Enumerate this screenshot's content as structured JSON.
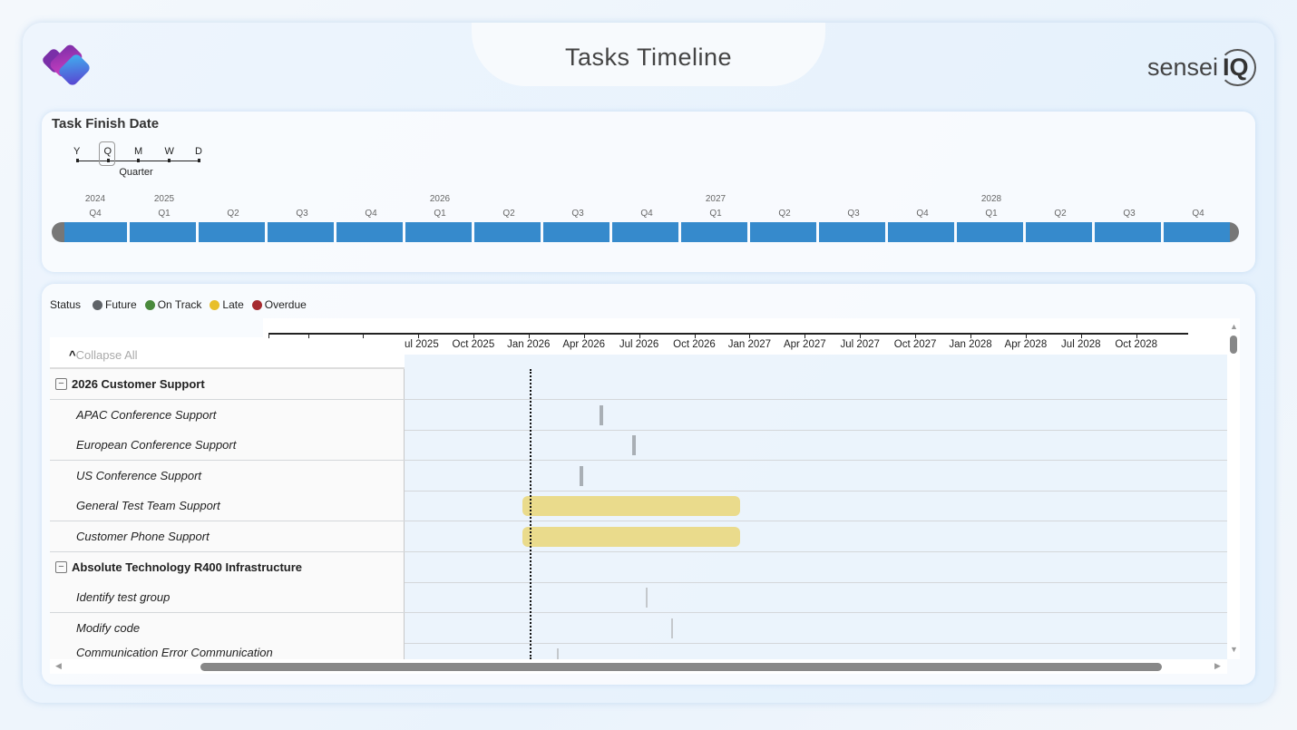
{
  "header": {
    "title": "Tasks Timeline",
    "brand": "senseiIQ",
    "brand_parts": [
      "sensei",
      "IQ"
    ]
  },
  "slicer": {
    "title": "Task Finish Date",
    "granularity": [
      "Y",
      "Q",
      "M",
      "W",
      "D"
    ],
    "selected_granularity": "Q",
    "selected_label": "Quarter",
    "periods": [
      {
        "year": "2024",
        "q": "Q4"
      },
      {
        "year": "2025",
        "q": "Q1"
      },
      {
        "year": "",
        "q": "Q2"
      },
      {
        "year": "",
        "q": "Q3"
      },
      {
        "year": "",
        "q": "Q4"
      },
      {
        "year": "2026",
        "q": "Q1"
      },
      {
        "year": "",
        "q": "Q2"
      },
      {
        "year": "",
        "q": "Q3"
      },
      {
        "year": "",
        "q": "Q4"
      },
      {
        "year": "2027",
        "q": "Q1"
      },
      {
        "year": "",
        "q": "Q2"
      },
      {
        "year": "",
        "q": "Q3"
      },
      {
        "year": "",
        "q": "Q4"
      },
      {
        "year": "2028",
        "q": "Q1"
      },
      {
        "year": "",
        "q": "Q2"
      },
      {
        "year": "",
        "q": "Q3"
      },
      {
        "year": "",
        "q": "Q4"
      }
    ],
    "bar_color": "#368acc"
  },
  "legend": {
    "title": "Status",
    "items": [
      {
        "label": "Future",
        "color": "#5f6368"
      },
      {
        "label": "On Track",
        "color": "#4a8a3c"
      },
      {
        "label": "Late",
        "color": "#e8bf2a"
      },
      {
        "label": "Overdue",
        "color": "#a52a2f"
      }
    ]
  },
  "gantt": {
    "collapse_all": "Collapse All",
    "axis_labels": [
      "ul 2025",
      "Oct 2025",
      "Jan 2026",
      "Apr 2026",
      "Jul 2026",
      "Oct 2026",
      "Jan 2027",
      "Apr 2027",
      "Jul 2027",
      "Oct 2027",
      "Jan 2028",
      "Apr 2028",
      "Jul 2028",
      "Oct 2028"
    ],
    "today": "2026-01-04",
    "rows": [
      {
        "type": "group",
        "name": "2026 Customer Support",
        "toggle": "−"
      },
      {
        "type": "task",
        "name": "APAC Conference Support",
        "start": "2026-04-28",
        "end": "2026-04-28",
        "status": "Future"
      },
      {
        "type": "task",
        "name": "European Conference Support",
        "start": "2026-06-21",
        "end": "2026-06-21",
        "status": "Future"
      },
      {
        "type": "task",
        "name": "US Conference Support",
        "start": "2026-03-26",
        "end": "2026-03-26",
        "status": "Future"
      },
      {
        "type": "task",
        "name": "General Test Team Support",
        "start": "2025-12-22",
        "end": "2026-12-17",
        "status": "Late"
      },
      {
        "type": "task",
        "name": "Customer Phone Support",
        "start": "2025-12-22",
        "end": "2026-12-17",
        "status": "Late"
      },
      {
        "type": "group",
        "name": "Absolute Technology R400 Infrastructure",
        "toggle": "−"
      },
      {
        "type": "task",
        "name": "Identify test group",
        "start": "2026-07-13",
        "end": "2026-07-13",
        "status": "Future"
      },
      {
        "type": "task",
        "name": "Modify code",
        "start": "2026-08-24",
        "end": "2026-08-24",
        "status": "Future"
      },
      {
        "type": "task",
        "name": "Communication Error Communication",
        "start": "2026-02-16",
        "end": "2026-02-16",
        "status": "Future"
      }
    ]
  }
}
